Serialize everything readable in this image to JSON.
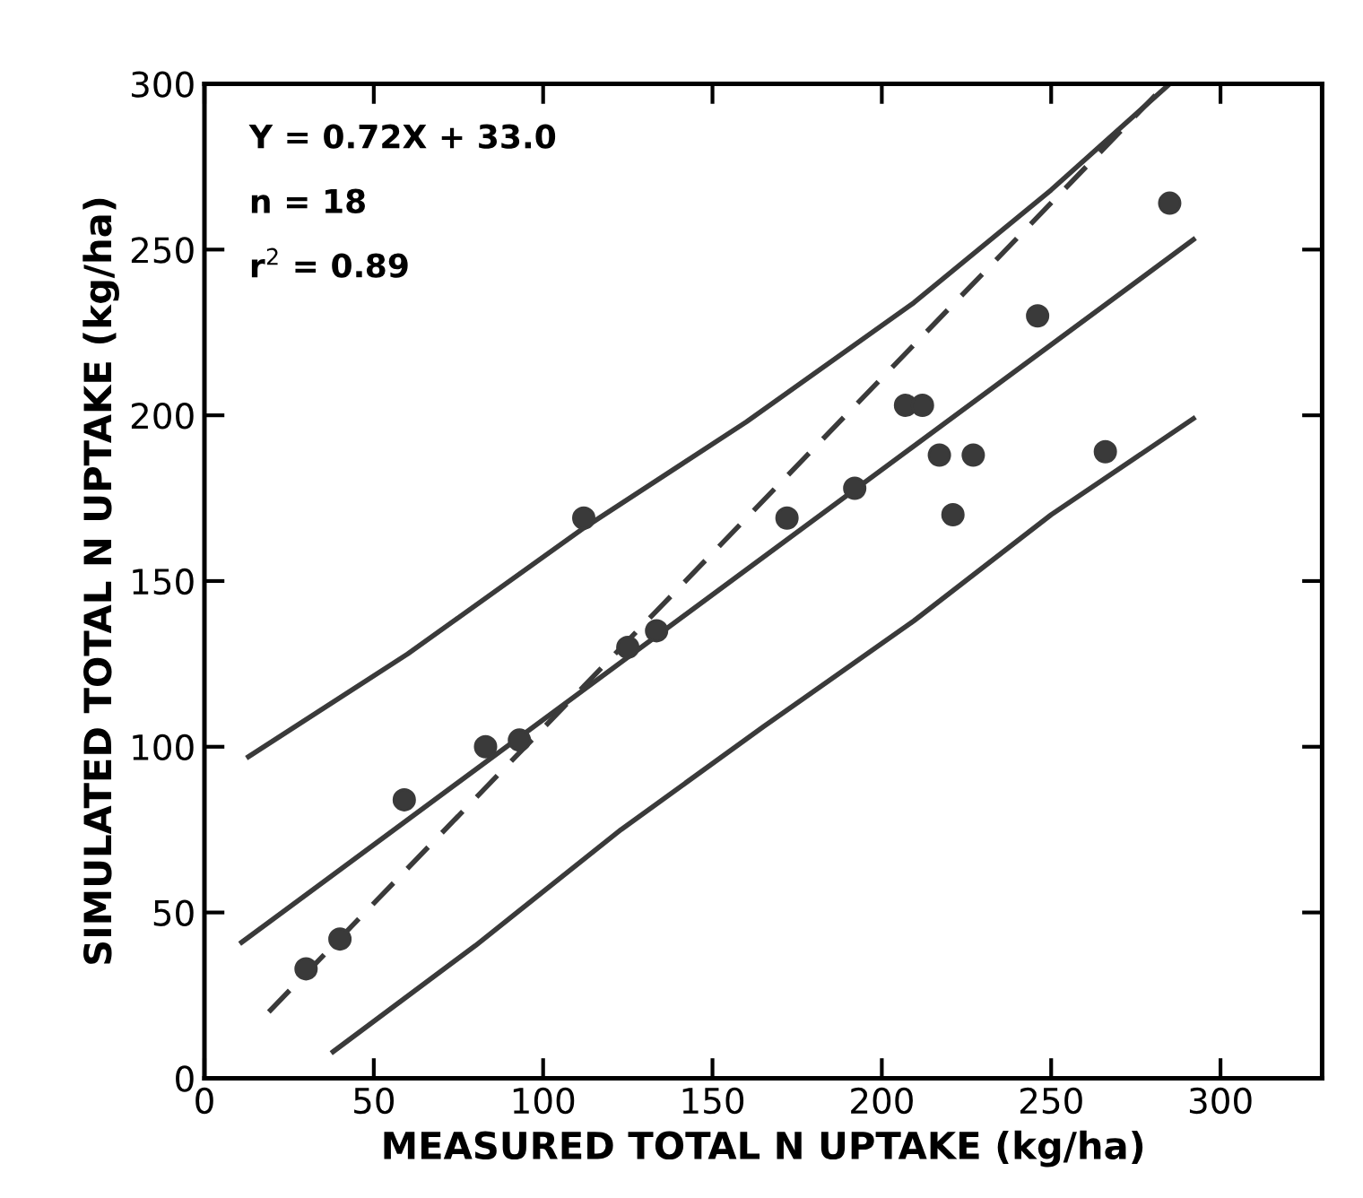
{
  "chart_data": {
    "type": "scatter",
    "xlabel": "MEASURED TOTAL N UPTAKE (kg/ha)",
    "ylabel": "SIMULATED TOTAL N UPTAKE (kg/ha)",
    "annotations": [
      "Y = 0.72X + 33.0",
      "n = 18",
      "r$^{2}$ = 0.89"
    ],
    "xlim": [
      0,
      330
    ],
    "ylim": [
      0,
      300
    ],
    "xticks": [
      0,
      50,
      100,
      150,
      200,
      250,
      300
    ],
    "yticks": [
      0,
      50,
      100,
      150,
      200,
      250,
      300
    ],
    "grid": false,
    "legend": false,
    "series": [
      {
        "marker": "circle",
        "color": "#3a3a3a",
        "x": [
          30,
          40,
          59,
          83,
          93,
          112,
          125,
          133.5,
          172,
          192,
          207,
          212,
          217,
          221,
          227,
          246,
          266,
          285
        ],
        "values": [
          33,
          42,
          84,
          100,
          102,
          169,
          130,
          135,
          169,
          178,
          203,
          203,
          188,
          170,
          188,
          230,
          189,
          264
        ]
      },
      {
        "type": "line",
        "marker": "none",
        "color": "#3a3a3a",
        "line_style": "solid",
        "x": [
          11,
          292
        ],
        "values": [
          41,
          253
        ]
      },
      {
        "type": "line",
        "marker": "none",
        "color": "#3a3a3a",
        "line_style": "solid",
        "x": [
          13,
          60,
          112,
          160,
          209.5,
          250,
          285
        ],
        "values": [
          97,
          128,
          166,
          198,
          234,
          268,
          300
        ]
      },
      {
        "type": "line",
        "marker": "none",
        "color": "#3a3a3a",
        "line_style": "solid",
        "x": [
          38,
          80,
          123,
          165,
          209.5,
          250,
          292
        ],
        "values": [
          8,
          40,
          75,
          106,
          138,
          170,
          199
        ]
      },
      {
        "type": "line",
        "marker": "none",
        "color": "#3a3a3a",
        "line_style": "dashed",
        "x": [
          19,
          284
        ],
        "values": [
          20,
          300
        ]
      }
    ]
  }
}
